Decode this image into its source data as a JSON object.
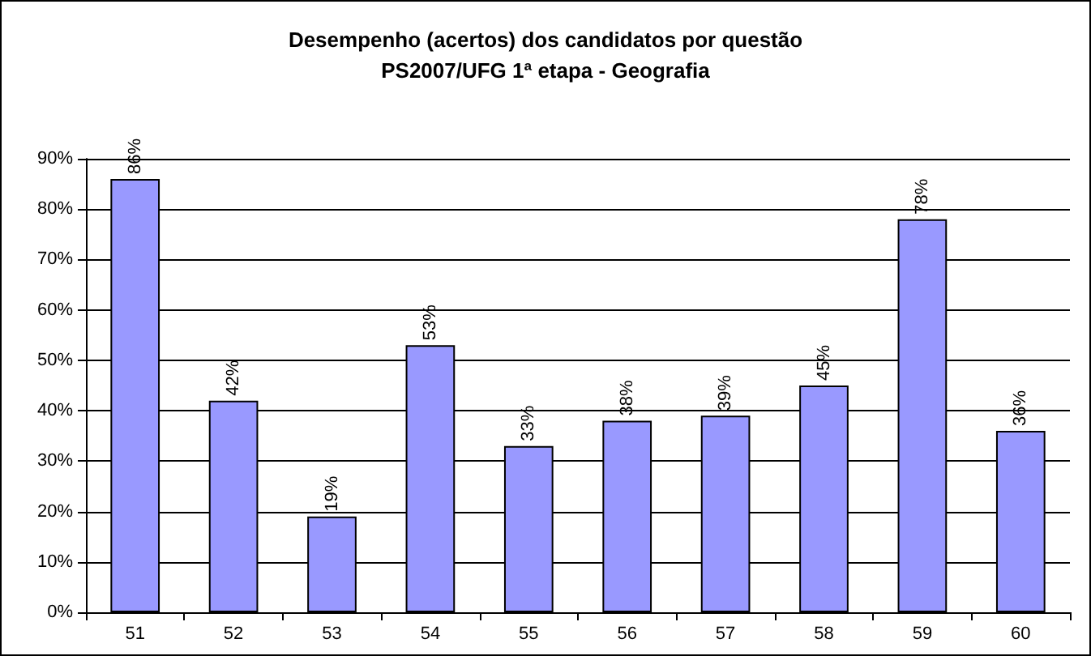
{
  "chart_data": {
    "type": "bar",
    "title": "Desempenho (acertos) dos candidatos por questão",
    "subtitle": "PS2007/UFG 1ª etapa - Geografia",
    "categories": [
      "51",
      "52",
      "53",
      "54",
      "55",
      "56",
      "57",
      "58",
      "59",
      "60"
    ],
    "values": [
      86,
      42,
      19,
      53,
      33,
      38,
      39,
      45,
      78,
      36
    ],
    "value_labels": [
      "86%",
      "42%",
      "19%",
      "53%",
      "33%",
      "38%",
      "39%",
      "45%",
      "78%",
      "36%"
    ],
    "color": "#9999ff",
    "ylim": [
      0,
      90
    ],
    "yticks": [
      {
        "value": 0,
        "label": "0%"
      },
      {
        "value": 10,
        "label": "10%"
      },
      {
        "value": 20,
        "label": "20%"
      },
      {
        "value": 30,
        "label": "30%"
      },
      {
        "value": 40,
        "label": "40%"
      },
      {
        "value": 50,
        "label": "50%"
      },
      {
        "value": 60,
        "label": "60%"
      },
      {
        "value": 70,
        "label": "70%"
      },
      {
        "value": 80,
        "label": "80%"
      },
      {
        "value": 90,
        "label": "90%"
      }
    ],
    "grid": "y"
  }
}
